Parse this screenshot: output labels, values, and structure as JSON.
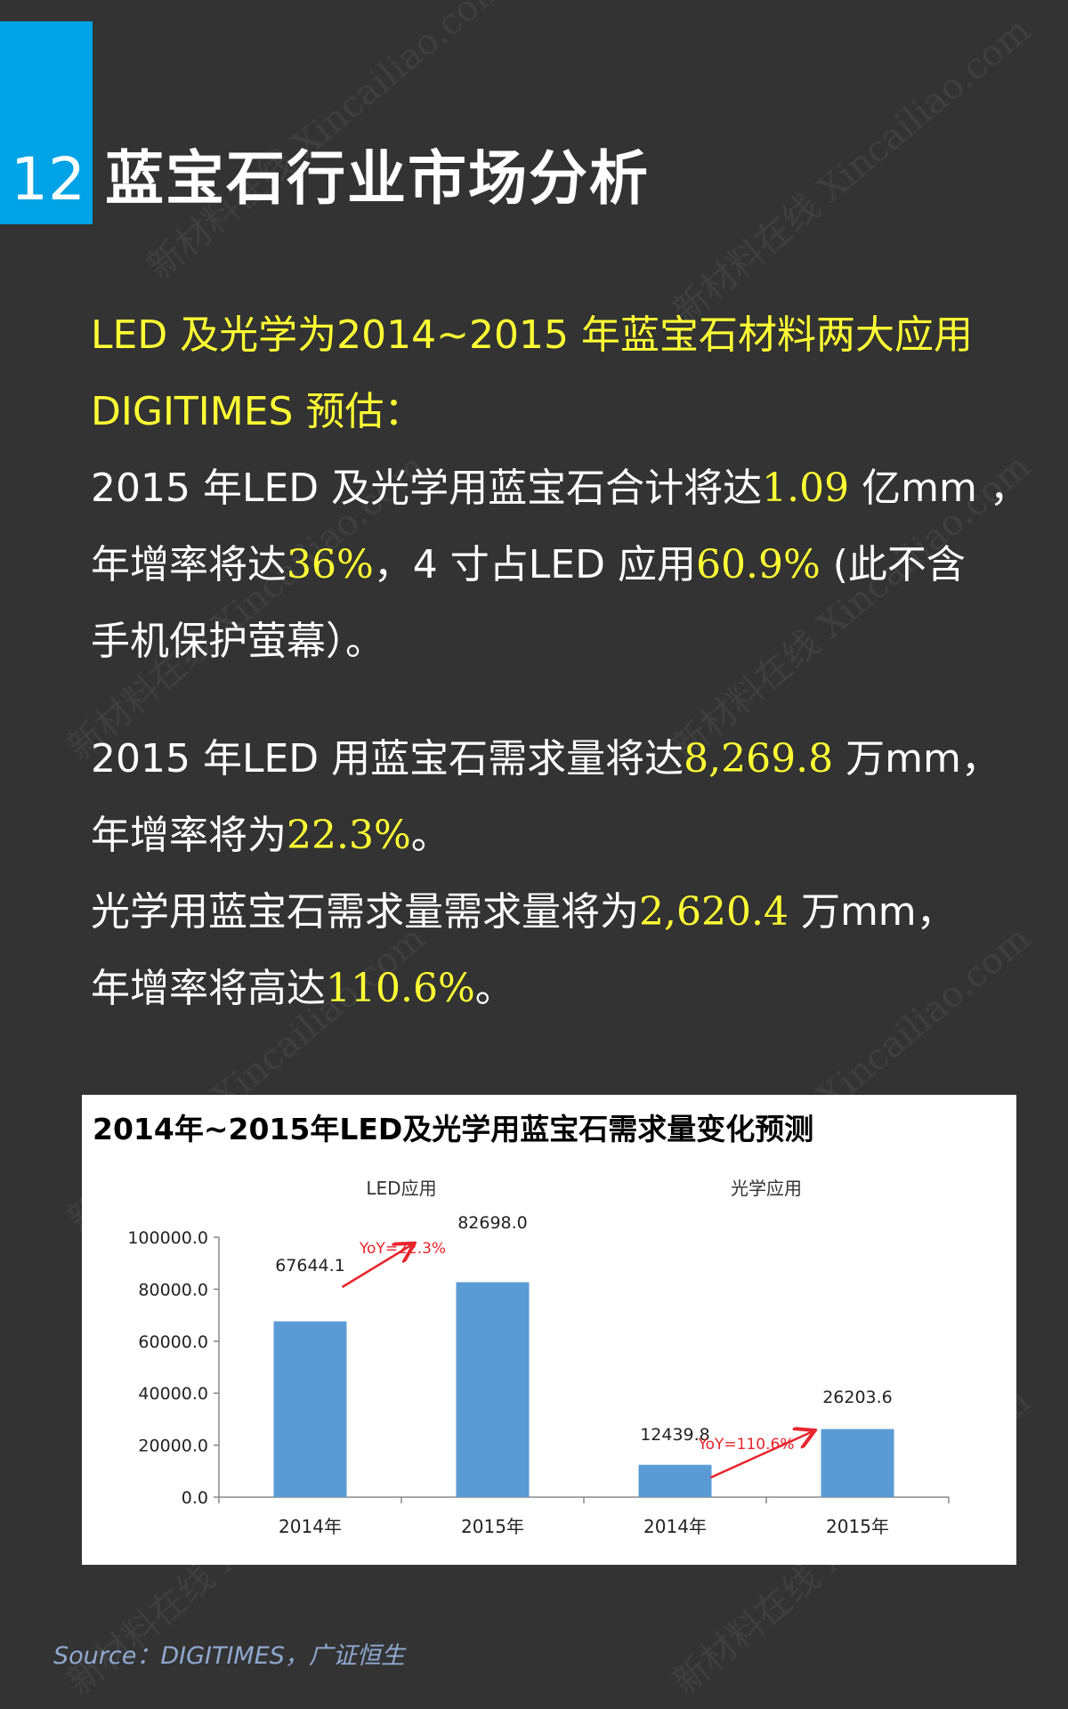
{
  "header": {
    "number": "12",
    "title": "蓝宝石行业市场分析"
  },
  "intro": {
    "line1": "LED 及光学为2014~2015 年蓝宝石材料两大应用",
    "line2": "DIGITIMES 预估："
  },
  "para1": {
    "l1_a": "2015 年LED 及光学用蓝宝石合计将达",
    "l1_v": "1.09",
    "l1_b": " 亿mm ，",
    "l2_a": "年增率将达",
    "l2_v": "36%",
    "l2_b": "，4 寸占LED 应用",
    "l2_v2": "60.9%",
    "l2_c": " (此不含",
    "l3": "手机保护萤幕）。"
  },
  "para2": {
    "l1_a": "2015 年LED 用蓝宝石需求量将达",
    "l1_v": "8,269.8",
    "l1_b": " 万mm，",
    "l2_a": "年增率将为",
    "l2_v": "22.3%",
    "l2_b": "。",
    "l3_a": "光学用蓝宝石需求量需求量将为",
    "l3_v": "2,620.4",
    "l3_b": " 万mm，",
    "l4_a": "年增率将高达",
    "l4_v": "110.6%",
    "l4_b": "。"
  },
  "chart_data": {
    "type": "bar",
    "title": "2014年~2015年LED及光学用蓝宝石需求量变化预测",
    "groups": [
      "LED应用",
      "光学应用"
    ],
    "categories": [
      "2014年",
      "2015年",
      "2014年",
      "2015年"
    ],
    "values": [
      67644.1,
      82698.0,
      12439.8,
      26203.6
    ],
    "value_labels": [
      "67644.1",
      "82698.0",
      "12439.8",
      "26203.6"
    ],
    "yticks": [
      "0.0",
      "20000.0",
      "40000.0",
      "60000.0",
      "80000.0",
      "100000.0"
    ],
    "ylim": [
      0,
      100000
    ],
    "annotations": [
      "YoY=22.3%",
      "YoY=110.6%"
    ],
    "bar_color": "#5b9bd5",
    "arrow_color": "#e8242c"
  },
  "source": "Source：DIGITIMES，广证恒生",
  "watermark": "新材料在线 Xincailiao.com"
}
